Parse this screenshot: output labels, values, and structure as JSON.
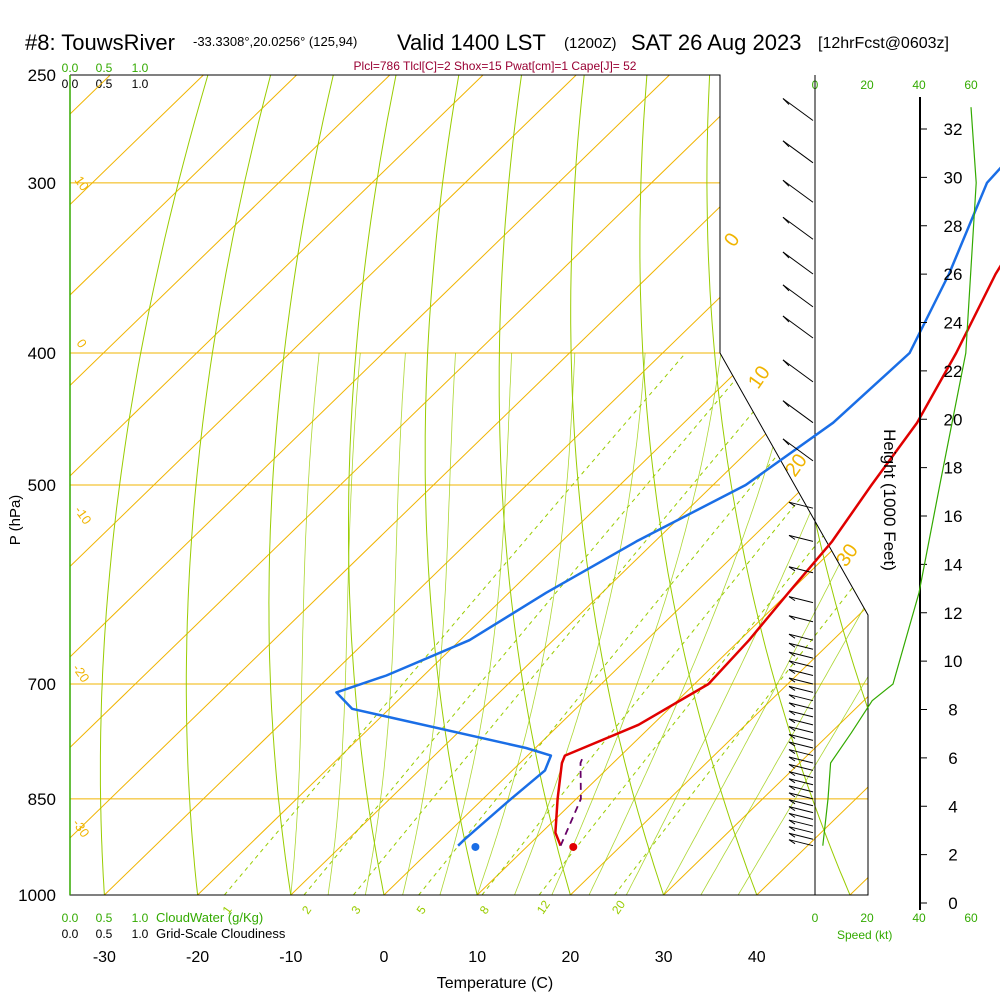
{
  "header": {
    "station": "#8: TouwsRiver",
    "coords": "-33.3308°,20.0256° (125,94)",
    "valid": "Valid 1400 LST",
    "utc": "(1200Z)",
    "date": "SAT 26 Aug 2023",
    "forecast": "[12hrFcst@0603z]",
    "indices": "Plcl=786 Tlcl[C]=2 Shox=15 Pwat[cm]=1 Cape[J]= 52"
  },
  "colors": {
    "temperature": "#e00000",
    "dewpoint": "#1a6ee6",
    "isotherm": "#f0b400",
    "dry_adiabat": "#99cc00",
    "mixing_ratio": "#99cc00",
    "parcel": "#660066",
    "green_label": "#33aa00",
    "indices": "#990033",
    "cloud": "#33aa00"
  },
  "chart_data": {
    "type": "skew-t",
    "title": "#8: TouwsRiver Valid 1400 LST SAT 26 Aug 2023",
    "xlabel": "Temperature (C)",
    "ylabel": "P (hPa)",
    "y2label": "Height (1000 Feet)",
    "x_ticks": [
      -30,
      -20,
      -10,
      0,
      10,
      20,
      30,
      40
    ],
    "p_ticks": [
      250,
      300,
      400,
      500,
      700,
      850,
      1000
    ],
    "height_ticks": [
      0,
      2,
      4,
      6,
      8,
      10,
      12,
      14,
      16,
      18,
      20,
      22,
      24,
      26,
      28,
      30,
      32
    ],
    "xlim": [
      -35,
      45
    ],
    "plim": [
      1000,
      250
    ],
    "isotherm_labels": [
      {
        "t": 0,
        "label": "0"
      },
      {
        "t": 10,
        "label": "10"
      },
      {
        "t": 20,
        "label": "20"
      },
      {
        "t": 30,
        "label": "30"
      },
      {
        "t": -10,
        "label": "-10"
      },
      {
        "t": -20,
        "label": "-20"
      },
      {
        "t": -30,
        "label": "-30"
      },
      {
        "t": 10,
        "label": "10",
        "side": "left"
      },
      {
        "t": 0,
        "label": "0",
        "side": "left"
      }
    ],
    "mixing_ratio_labels": [
      "1",
      "2",
      "3",
      "5",
      "8",
      "12",
      "20"
    ],
    "temperature": [
      {
        "p": 264,
        "t": -9.5
      },
      {
        "p": 280,
        "t": -8.5
      },
      {
        "p": 300,
        "t": -7.0
      },
      {
        "p": 350,
        "t": -3.0
      },
      {
        "p": 400,
        "t": 1.5
      },
      {
        "p": 450,
        "t": 5.0
      },
      {
        "p": 500,
        "t": 7.0
      },
      {
        "p": 550,
        "t": 9.0
      },
      {
        "p": 600,
        "t": 10.0
      },
      {
        "p": 650,
        "t": 11.0
      },
      {
        "p": 700,
        "t": 11.5
      },
      {
        "p": 750,
        "t": 8.5
      },
      {
        "p": 790,
        "t": 4.0
      },
      {
        "p": 800,
        "t": 4.5
      },
      {
        "p": 850,
        "t": 8.0
      },
      {
        "p": 900,
        "t": 11.5
      },
      {
        "p": 920,
        "t": 13.5
      }
    ],
    "dewpoint": [
      {
        "p": 264,
        "t": -15.0
      },
      {
        "p": 300,
        "t": -14.0
      },
      {
        "p": 350,
        "t": -8.0
      },
      {
        "p": 400,
        "t": -3.5
      },
      {
        "p": 450,
        "t": -4.0
      },
      {
        "p": 500,
        "t": -6.5
      },
      {
        "p": 550,
        "t": -12.0
      },
      {
        "p": 600,
        "t": -16.0
      },
      {
        "p": 650,
        "t": -19.0
      },
      {
        "p": 690,
        "t": -24.0
      },
      {
        "p": 710,
        "t": -27.5
      },
      {
        "p": 730,
        "t": -24.0
      },
      {
        "p": 780,
        "t": -1.0
      },
      {
        "p": 790,
        "t": 2.5
      },
      {
        "p": 810,
        "t": 3.5
      },
      {
        "p": 850,
        "t": 3.0
      },
      {
        "p": 910,
        "t": 2.5
      },
      {
        "p": 920,
        "t": 2.5
      }
    ],
    "parcel": [
      {
        "p": 920,
        "t": 13.5
      },
      {
        "p": 850,
        "t": 10.5
      },
      {
        "p": 800,
        "t": 6.5
      },
      {
        "p": 790,
        "t": 6.0
      }
    ],
    "surface_temp": {
      "p": 922,
      "t": 15.0
    },
    "surface_dewpoint": {
      "p": 922,
      "t": 4.5
    },
    "cloudwater_scale": [
      "0.0",
      "0.5",
      "1.0"
    ],
    "cloudiness_scale": [
      "0.0",
      "0.5",
      "1.0"
    ],
    "speed_scale": [
      "0",
      "20",
      "40",
      "60"
    ],
    "wind_profile": [
      {
        "p": 920,
        "kt": 3
      },
      {
        "p": 850,
        "kt": 5
      },
      {
        "p": 800,
        "kt": 6
      },
      {
        "p": 760,
        "kt": 14
      },
      {
        "p": 720,
        "kt": 22
      },
      {
        "p": 700,
        "kt": 30
      },
      {
        "p": 600,
        "kt": 40
      },
      {
        "p": 500,
        "kt": 48
      },
      {
        "p": 400,
        "kt": 58
      },
      {
        "p": 300,
        "kt": 62
      },
      {
        "p": 264,
        "kt": 60
      }
    ],
    "wind_barb_pressures": [
      270,
      290,
      310,
      330,
      350,
      370,
      390,
      420,
      450,
      480,
      520,
      550,
      580,
      610,
      630,
      650,
      660,
      670,
      680,
      690,
      700,
      710,
      720,
      730,
      740,
      750,
      760,
      770,
      780,
      790,
      800,
      810,
      820,
      830,
      840,
      850,
      860,
      870,
      880,
      890,
      900,
      910,
      920
    ]
  },
  "labels": {
    "cloudwater": "CloudWater (g/Kg)",
    "cloudiness": "Grid-Scale Cloudiness",
    "speed": "Speed (kt)"
  }
}
